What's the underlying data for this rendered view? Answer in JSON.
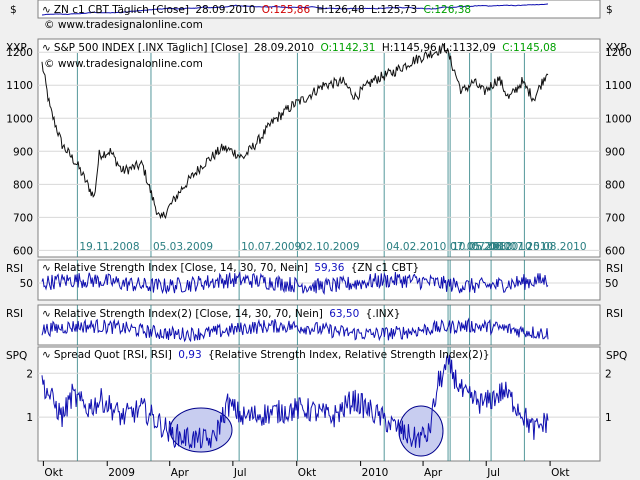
{
  "panels": {
    "zn": {
      "left_label": "$",
      "right_label": "$",
      "title": "ZN c1 CBT Täglich [Close]",
      "date": "28.09.2010",
      "open": "O:125,86",
      "high": "H:126,48",
      "low": "L:125,73",
      "close": "C:126,38",
      "copyright": "© www.tradesignalonline.com"
    },
    "spx": {
      "left_label": "XXP",
      "right_label": "XXP",
      "title": "S&P 500 INDEX [.INX Täglich] [Close]",
      "date": "28.09.2010",
      "open": "O:1142,31",
      "high": "H:1145,96",
      "low": "L:1132,09",
      "close": "C:1145,08",
      "copyright": "© www.tradesignalonline.com",
      "y_ticks": [
        "1200",
        "1100",
        "1000",
        "900",
        "800",
        "700",
        "600"
      ]
    },
    "rsi1": {
      "left_label": "RSI",
      "right_label": "RSI",
      "title": "Relative Strength Index [Close, 14, 30, 70, Nein]",
      "value": "59,36",
      "instrument": "{ZN c1 CBT}",
      "y_ticks": [
        "50"
      ]
    },
    "rsi2": {
      "left_label": "RSI",
      "right_label": "RSI",
      "title": "Relative Strength Index(2) [Close, 14, 30, 70, Nein]",
      "value": "63,50",
      "instrument": "{.INX}"
    },
    "spq": {
      "left_label": "SPQ",
      "right_label": "SPQ",
      "title": "Spread Quot [RSI, RSI]",
      "value": "0,93",
      "args": "{Relative Strength Index, Relative Strength Index(2)}",
      "y_ticks": [
        "2",
        "1"
      ]
    }
  },
  "x_axis_labels": [
    "Okt",
    "2009",
    "Apr",
    "Jul",
    "Okt",
    "2010",
    "Apr",
    "Jul",
    "Okt"
  ],
  "event_date_labels": [
    "19.11.2008",
    "05.03.2009",
    "10.07.2009",
    "02.10.2009",
    "04.02.2010",
    "07.05.2010",
    "10.05.2010",
    "07.06.2010",
    "08.07.2010",
    "25.08.2010"
  ],
  "colors": {
    "series": "#1010b0",
    "highlight_fill": "#c8cdf0",
    "highlight_stroke": "#00008b",
    "vline": "#2a7f82"
  },
  "chart_data": [
    {
      "type": "line",
      "title": "S&P 500 INDEX [.INX Täglich] [Close]",
      "ylim": [
        580,
        1240
      ],
      "x_start": "2008-09-29",
      "x_end": "2010-09-28",
      "series": [
        {
          "name": "S&P 500 INDEX",
          "values_monthly_approx": [
            1166,
            1000,
            900,
            830,
            900,
            830,
            760,
            690,
            800,
            880,
            920,
            900,
            950,
            1000,
            1060,
            1080,
            1110,
            1150,
            1075,
            1110,
            1170,
            1190,
            1090,
            1060,
            1080,
            1120,
            1145
          ]
        }
      ]
    },
    {
      "type": "line",
      "title": "Spread Quot [RSI, RSI]",
      "ylim": [
        0,
        2.6
      ],
      "series": [
        {
          "name": "Spread Quot",
          "last": 0.93
        }
      ]
    }
  ]
}
